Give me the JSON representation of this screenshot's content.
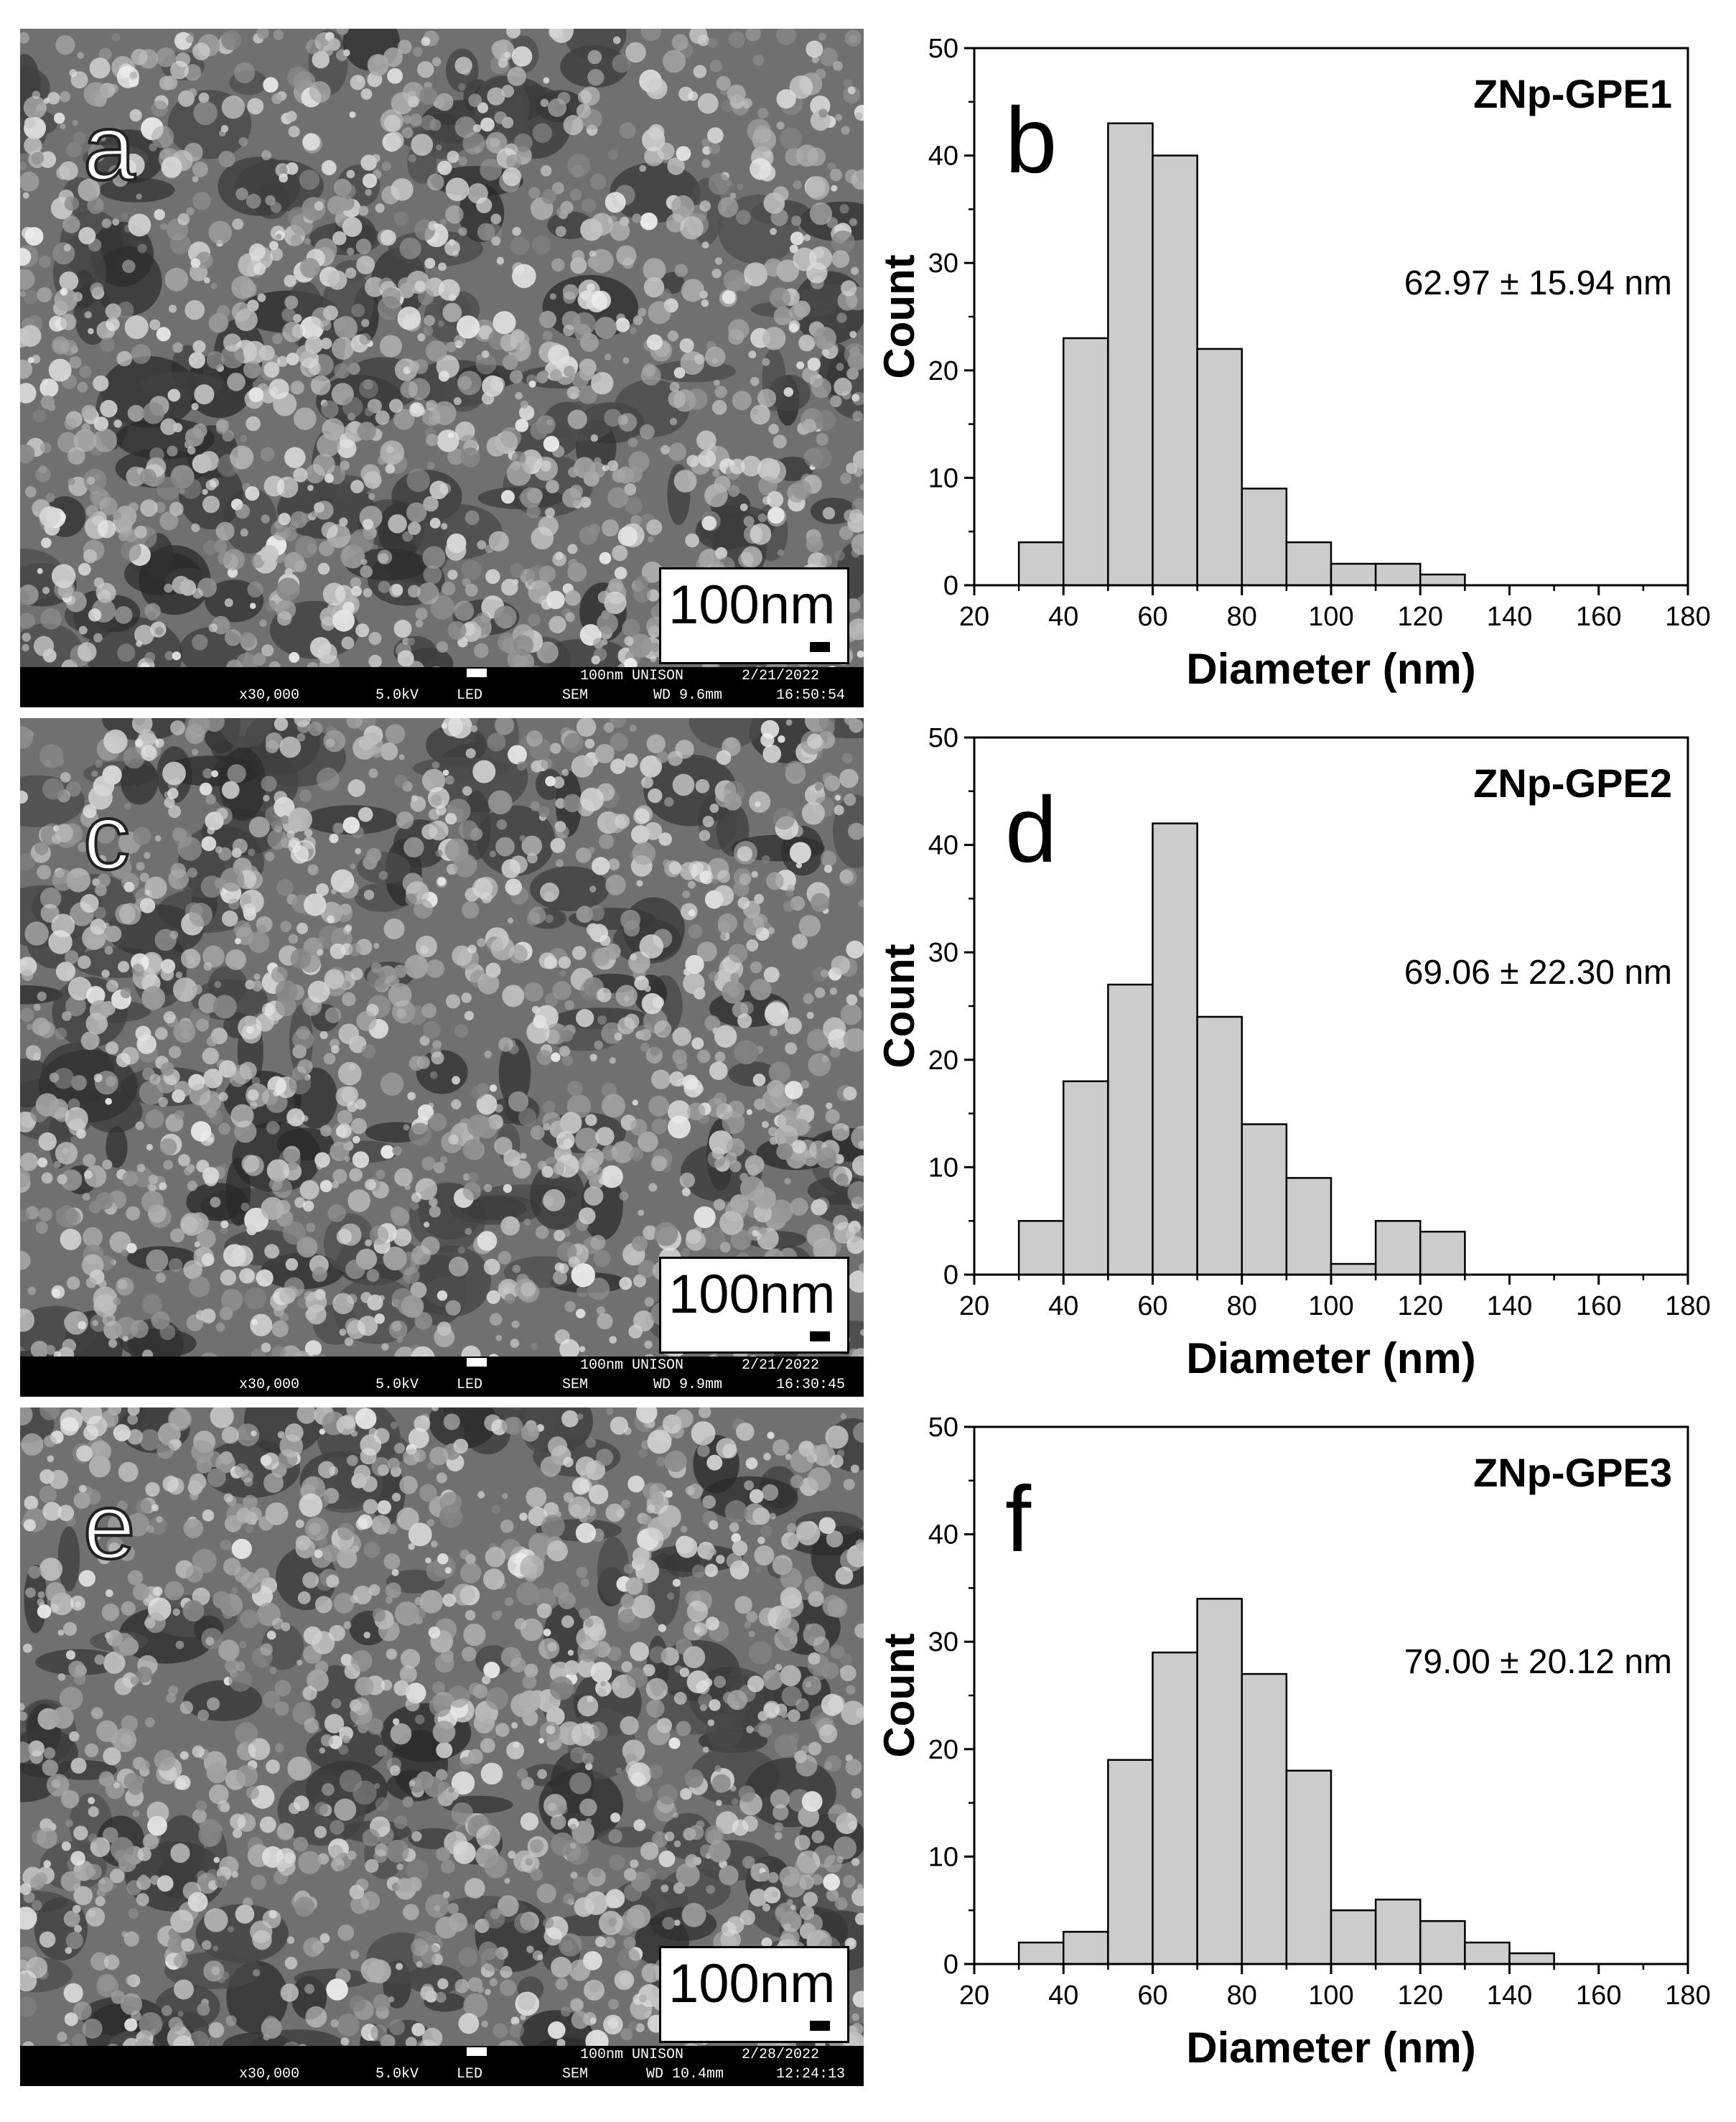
{
  "sem_panels": [
    {
      "letter": "a",
      "scale_label": "100nm",
      "magnification": "x30,000",
      "voltage": "5.0kV",
      "detector": "LED",
      "mode": "SEM",
      "scale_info": "100nm UNISON",
      "date": "2/21/2022",
      "wd": "WD 9.6mm",
      "time": "16:50:54"
    },
    {
      "letter": "c",
      "scale_label": "100nm",
      "magnification": "x30,000",
      "voltage": "5.0kV",
      "detector": "LED",
      "mode": "SEM",
      "scale_info": "100nm UNISON",
      "date": "2/21/2022",
      "wd": "WD 9.9mm",
      "time": "16:30:45"
    },
    {
      "letter": "e",
      "scale_label": "100nm",
      "magnification": "x30,000",
      "voltage": "5.0kV",
      "detector": "LED",
      "mode": "SEM",
      "scale_info": "100nm UNISON",
      "date": "2/28/2022",
      "wd": "WD 10.4mm",
      "time": "12:24:13"
    }
  ],
  "chart_data": [
    {
      "type": "bar",
      "panel_letter": "b",
      "title": "ZNp-GPE1",
      "annotation": "62.97 ± 15.94 nm",
      "xlabel": "Diameter (nm)",
      "ylabel": "Count",
      "xlim": [
        20,
        180
      ],
      "ylim": [
        0,
        50
      ],
      "xticks": [
        20,
        40,
        60,
        80,
        100,
        120,
        140,
        160,
        180
      ],
      "yticks": [
        0,
        10,
        20,
        30,
        40,
        50
      ],
      "bin_width": 10,
      "bin_starts": [
        30,
        40,
        50,
        60,
        70,
        80,
        90,
        100,
        110,
        120
      ],
      "values": [
        4,
        23,
        43,
        40,
        22,
        9,
        4,
        2,
        2,
        1
      ],
      "bar_color": "#cccccc",
      "grid": false
    },
    {
      "type": "bar",
      "panel_letter": "d",
      "title": "ZNp-GPE2",
      "annotation": "69.06  ± 22.30 nm",
      "xlabel": "Diameter (nm)",
      "ylabel": "Count",
      "xlim": [
        20,
        180
      ],
      "ylim": [
        0,
        50
      ],
      "xticks": [
        20,
        40,
        60,
        80,
        100,
        120,
        140,
        160,
        180
      ],
      "yticks": [
        0,
        10,
        20,
        30,
        40,
        50
      ],
      "bin_width": 10,
      "bin_starts": [
        30,
        40,
        50,
        60,
        70,
        80,
        90,
        100,
        110,
        120
      ],
      "values": [
        5,
        18,
        27,
        42,
        24,
        14,
        9,
        1,
        5,
        4
      ],
      "bar_color": "#cccccc",
      "grid": false
    },
    {
      "type": "bar",
      "panel_letter": "f",
      "title": "ZNp-GPE3",
      "annotation": "79.00 ± 20.12 nm",
      "xlabel": "Diameter (nm)",
      "ylabel": "Count",
      "xlim": [
        20,
        180
      ],
      "ylim": [
        0,
        50
      ],
      "xticks": [
        20,
        40,
        60,
        80,
        100,
        120,
        140,
        160,
        180
      ],
      "yticks": [
        0,
        10,
        20,
        30,
        40,
        50
      ],
      "bin_width": 10,
      "bin_starts": [
        30,
        40,
        50,
        60,
        70,
        80,
        90,
        100,
        110,
        120,
        130,
        140
      ],
      "values": [
        2,
        3,
        19,
        29,
        34,
        27,
        18,
        5,
        6,
        4,
        2,
        1
      ],
      "bar_color": "#cccccc",
      "grid": false
    }
  ]
}
